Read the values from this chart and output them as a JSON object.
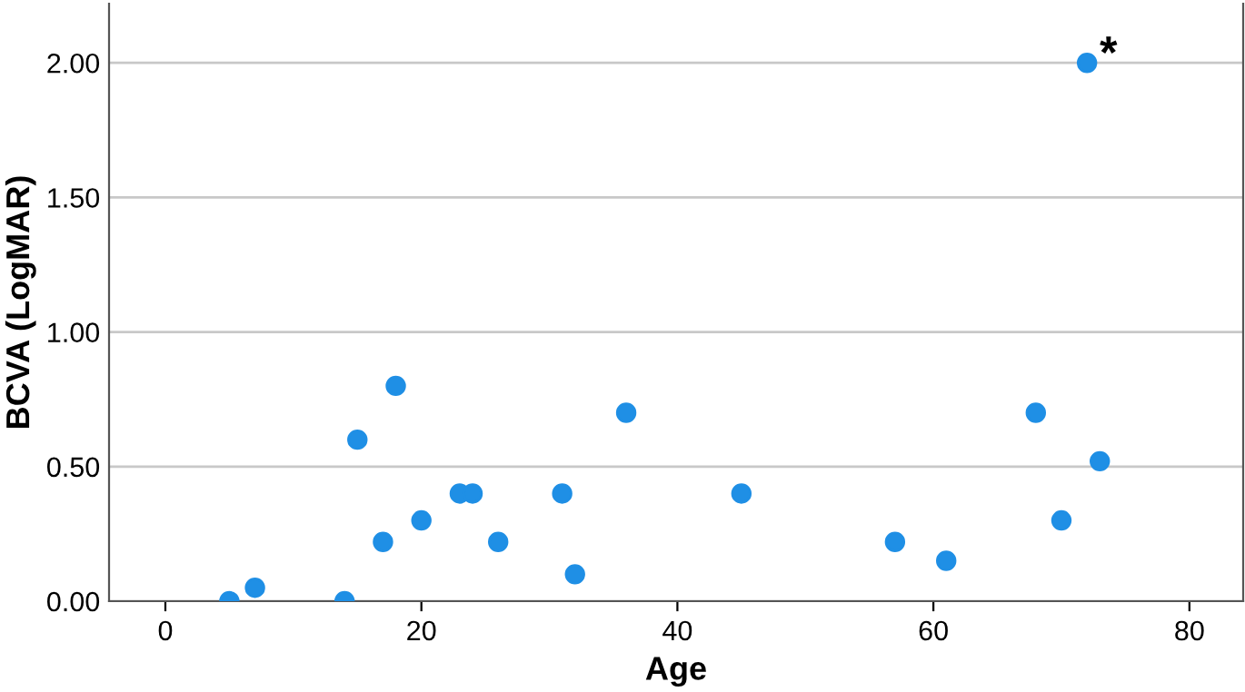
{
  "chart_data": {
    "type": "scatter",
    "xlabel": "Age",
    "ylabel": "BCVA (LogMAR)",
    "x": [
      5,
      7,
      14,
      15,
      17,
      18,
      20,
      23,
      24,
      26,
      31,
      32,
      36,
      45,
      57,
      61,
      68,
      70,
      72,
      73
    ],
    "series": [
      {
        "color": "#1f8fe5",
        "values": [
          0,
          0.05,
          0,
          0.6,
          0.22,
          0.8,
          0.3,
          0.4,
          0.4,
          0.22,
          0.4,
          0.1,
          0.7,
          0.4,
          0.22,
          0.15,
          0.7,
          0.3,
          2.0,
          0.52
        ]
      }
    ],
    "xlim": [
      -4.4,
      84.2
    ],
    "ylim": [
      0,
      2.22
    ],
    "xticks": [
      0,
      20,
      40,
      60,
      80
    ],
    "yticks": [
      {
        "value": 0,
        "label": "0.00"
      },
      {
        "value": 0.5,
        "label": "0.50"
      },
      {
        "value": 1,
        "label": "1.00"
      },
      {
        "value": 1.5,
        "label": "1.50"
      },
      {
        "value": 2,
        "label": "2.00"
      }
    ],
    "annotations": [
      {
        "text": "*",
        "x": 72,
        "y": 2.0
      }
    ],
    "grid": "y",
    "marker": "circle",
    "legend": false
  }
}
